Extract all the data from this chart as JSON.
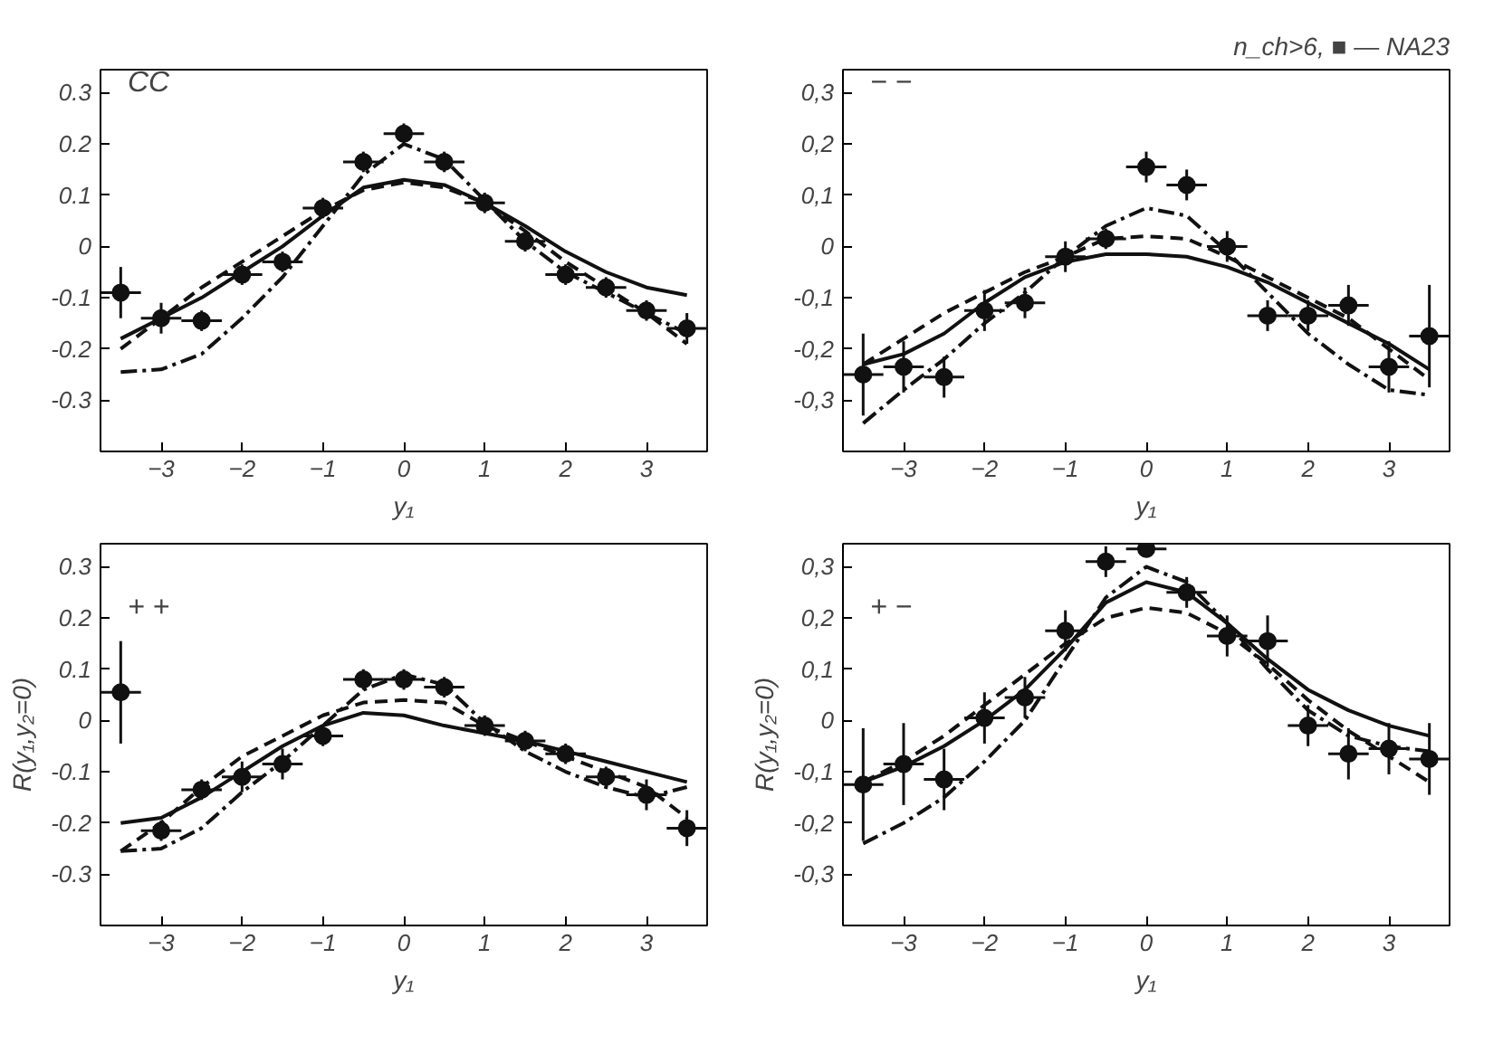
{
  "chart_data": [
    {
      "type": "line",
      "xlabel": "y₁",
      "annotations": [
        "CC"
      ],
      "xlim": [
        -3.75,
        3.75
      ],
      "ylim": [
        -0.4,
        0.345
      ],
      "xticks": [
        -3,
        -2,
        -1,
        0,
        1,
        2,
        3
      ],
      "yticks": [
        {
          "value": -0.3,
          "label": "-0.3"
        },
        {
          "value": -0.2,
          "label": "-0.2"
        },
        {
          "value": -0.1,
          "label": "-0.1"
        },
        {
          "value": 0,
          "label": "0"
        },
        {
          "value": 0.1,
          "label": "0.1"
        },
        {
          "value": 0.2,
          "label": "0.2"
        },
        {
          "value": 0.3,
          "label": "0.3"
        }
      ],
      "grid": false,
      "x": [
        -3.5,
        -3,
        -2.5,
        -2,
        -1.5,
        -1,
        -0.5,
        0,
        0.5,
        1,
        1.5,
        2,
        2.5,
        3,
        3.5
      ],
      "series": [
        {
          "line_style": "solid",
          "color": "#111111",
          "values": [
            -0.18,
            -0.14,
            -0.1,
            -0.05,
            0.0,
            0.06,
            0.115,
            0.13,
            0.12,
            0.085,
            0.04,
            -0.01,
            -0.05,
            -0.08,
            -0.095
          ]
        },
        {
          "line_style": "dashed",
          "color": "#111111",
          "values": [
            -0.2,
            -0.14,
            -0.08,
            -0.03,
            0.02,
            0.07,
            0.11,
            0.125,
            0.115,
            0.085,
            0.03,
            -0.03,
            -0.08,
            -0.13,
            -0.19
          ]
        },
        {
          "line_style": "dashdot",
          "color": "#111111",
          "values": [
            -0.245,
            -0.24,
            -0.21,
            -0.14,
            -0.06,
            0.04,
            0.14,
            0.2,
            0.17,
            0.09,
            0.01,
            -0.05,
            -0.09,
            -0.13,
            -0.17
          ]
        },
        {
          "type": "scatter",
          "marker": "circle",
          "color": "#111111",
          "values": [
            -0.09,
            -0.14,
            -0.145,
            -0.055,
            -0.03,
            0.075,
            0.165,
            0.22,
            0.165,
            0.085,
            0.01,
            -0.055,
            -0.08,
            -0.125,
            -0.16
          ],
          "errors": [
            0.05,
            0.03,
            0.02,
            0.02,
            0.02,
            0.02,
            0.02,
            0.02,
            0.02,
            0.02,
            0.02,
            0.02,
            0.02,
            0.02,
            0.03
          ],
          "xerrors": [
            0.25,
            0.25,
            0.25,
            0.25,
            0.25,
            0.25,
            0.25,
            0.25,
            0.25,
            0.25,
            0.25,
            0.25,
            0.25,
            0.25,
            0.25
          ]
        }
      ]
    },
    {
      "type": "line",
      "title": "n_ch>6, ■ — NA23",
      "xlabel": "y₁",
      "annotations": [
        "− −"
      ],
      "xlim": [
        -3.75,
        3.75
      ],
      "ylim": [
        -0.4,
        0.345
      ],
      "xticks": [
        -3,
        -2,
        -1,
        0,
        1,
        2,
        3
      ],
      "yticks": [
        {
          "value": -0.3,
          "label": "-0,3"
        },
        {
          "value": -0.2,
          "label": "-0,2"
        },
        {
          "value": -0.1,
          "label": "-0,1"
        },
        {
          "value": 0,
          "label": "0"
        },
        {
          "value": 0.1,
          "label": "0,1"
        },
        {
          "value": 0.2,
          "label": "0,2"
        },
        {
          "value": 0.3,
          "label": "0,3"
        }
      ],
      "grid": false,
      "x": [
        -3.5,
        -3,
        -2.5,
        -2,
        -1.5,
        -1,
        -0.5,
        0,
        0.5,
        1,
        1.5,
        2,
        2.5,
        3,
        3.5
      ],
      "series": [
        {
          "line_style": "solid",
          "color": "#111111",
          "values": [
            -0.23,
            -0.21,
            -0.17,
            -0.11,
            -0.06,
            -0.03,
            -0.015,
            -0.015,
            -0.02,
            -0.04,
            -0.07,
            -0.11,
            -0.15,
            -0.19,
            -0.24
          ]
        },
        {
          "line_style": "dashed",
          "color": "#111111",
          "values": [
            -0.23,
            -0.18,
            -0.13,
            -0.09,
            -0.05,
            -0.02,
            0.015,
            0.02,
            0.015,
            -0.02,
            -0.06,
            -0.1,
            -0.14,
            -0.2,
            -0.26
          ]
        },
        {
          "line_style": "dashdot",
          "color": "#111111",
          "values": [
            -0.345,
            -0.28,
            -0.22,
            -0.15,
            -0.09,
            -0.02,
            0.04,
            0.075,
            0.06,
            -0.01,
            -0.09,
            -0.17,
            -0.23,
            -0.28,
            -0.29
          ]
        },
        {
          "type": "scatter",
          "marker": "circle",
          "color": "#111111",
          "values": [
            -0.25,
            -0.235,
            -0.255,
            -0.125,
            -0.11,
            -0.02,
            0.015,
            0.155,
            0.12,
            0.0,
            -0.135,
            -0.135,
            -0.115,
            -0.235,
            -0.175
          ],
          "errors": [
            0.08,
            0.05,
            0.04,
            0.04,
            0.03,
            0.03,
            0.02,
            0.03,
            0.03,
            0.03,
            0.03,
            0.03,
            0.04,
            0.05,
            0.1
          ],
          "xerrors": [
            0.25,
            0.25,
            0.25,
            0.25,
            0.25,
            0.25,
            0.25,
            0.25,
            0.25,
            0.25,
            0.25,
            0.25,
            0.25,
            0.25,
            0.25
          ]
        }
      ]
    },
    {
      "type": "line",
      "xlabel": "y₁",
      "ylabel": "R(y₁,y₂=0)",
      "annotations": [
        "+ +"
      ],
      "xlim": [
        -3.75,
        3.75
      ],
      "ylim": [
        -0.4,
        0.345
      ],
      "xticks": [
        -3,
        -2,
        -1,
        0,
        1,
        2,
        3
      ],
      "yticks": [
        {
          "value": -0.3,
          "label": "-0.3"
        },
        {
          "value": -0.2,
          "label": "-0.2"
        },
        {
          "value": -0.1,
          "label": "-0.1"
        },
        {
          "value": 0,
          "label": "0"
        },
        {
          "value": 0.1,
          "label": "0.1"
        },
        {
          "value": 0.2,
          "label": "0.2"
        },
        {
          "value": 0.3,
          "label": "0.3"
        }
      ],
      "grid": false,
      "x": [
        -3.5,
        -3,
        -2.5,
        -2,
        -1.5,
        -1,
        -0.5,
        0,
        0.5,
        1,
        1.5,
        2,
        2.5,
        3,
        3.5
      ],
      "series": [
        {
          "line_style": "solid",
          "color": "#111111",
          "values": [
            -0.2,
            -0.19,
            -0.15,
            -0.1,
            -0.05,
            -0.01,
            0.015,
            0.01,
            -0.01,
            -0.025,
            -0.04,
            -0.06,
            -0.08,
            -0.1,
            -0.12
          ]
        },
        {
          "line_style": "dashed",
          "color": "#111111",
          "values": [
            -0.255,
            -0.2,
            -0.13,
            -0.07,
            -0.03,
            0.01,
            0.035,
            0.04,
            0.035,
            -0.01,
            -0.04,
            -0.07,
            -0.1,
            -0.13,
            -0.19
          ]
        },
        {
          "line_style": "dashdot",
          "color": "#111111",
          "values": [
            -0.255,
            -0.25,
            -0.21,
            -0.14,
            -0.08,
            -0.01,
            0.06,
            0.09,
            0.07,
            -0.005,
            -0.06,
            -0.1,
            -0.13,
            -0.15,
            -0.13
          ]
        },
        {
          "type": "scatter",
          "marker": "circle",
          "color": "#111111",
          "values": [
            0.055,
            -0.215,
            -0.135,
            -0.11,
            -0.085,
            -0.03,
            0.08,
            0.08,
            0.065,
            -0.01,
            -0.04,
            -0.065,
            -0.11,
            -0.145,
            -0.21
          ],
          "errors": [
            0.1,
            0.02,
            0.02,
            0.03,
            0.03,
            0.02,
            0.02,
            0.02,
            0.02,
            0.02,
            0.02,
            0.02,
            0.02,
            0.03,
            0.035
          ],
          "xerrors": [
            0.25,
            0.25,
            0.25,
            0.25,
            0.25,
            0.25,
            0.25,
            0.25,
            0.25,
            0.25,
            0.25,
            0.25,
            0.25,
            0.25,
            0.25
          ]
        }
      ]
    },
    {
      "type": "line",
      "xlabel": "y₁",
      "ylabel": "R(y₁,y₂=0)",
      "annotations": [
        "+ −"
      ],
      "xlim": [
        -3.75,
        3.75
      ],
      "ylim": [
        -0.4,
        0.345
      ],
      "xticks": [
        -3,
        -2,
        -1,
        0,
        1,
        2,
        3
      ],
      "yticks": [
        {
          "value": -0.3,
          "label": "-0,3"
        },
        {
          "value": -0.2,
          "label": "-0,2"
        },
        {
          "value": -0.1,
          "label": "-0,1"
        },
        {
          "value": 0,
          "label": "0"
        },
        {
          "value": 0.1,
          "label": "0,1"
        },
        {
          "value": 0.2,
          "label": "0,2"
        },
        {
          "value": 0.3,
          "label": "0,3"
        }
      ],
      "grid": false,
      "x": [
        -3.5,
        -3,
        -2.5,
        -2,
        -1.5,
        -1,
        -0.5,
        0,
        0.5,
        1,
        1.5,
        2,
        2.5,
        3,
        3.5
      ],
      "series": [
        {
          "line_style": "solid",
          "color": "#111111",
          "values": [
            -0.12,
            -0.09,
            -0.05,
            0.0,
            0.06,
            0.14,
            0.23,
            0.27,
            0.25,
            0.19,
            0.12,
            0.06,
            0.02,
            -0.01,
            -0.03
          ]
        },
        {
          "line_style": "dashed",
          "color": "#111111",
          "values": [
            -0.12,
            -0.08,
            -0.03,
            0.03,
            0.09,
            0.15,
            0.2,
            0.22,
            0.21,
            0.17,
            0.11,
            0.04,
            -0.02,
            -0.07,
            -0.12
          ]
        },
        {
          "line_style": "dashdot",
          "color": "#111111",
          "values": [
            -0.24,
            -0.2,
            -0.15,
            -0.08,
            0.0,
            0.12,
            0.24,
            0.3,
            0.27,
            0.19,
            0.1,
            0.02,
            -0.03,
            -0.05,
            -0.06
          ]
        },
        {
          "type": "scatter",
          "marker": "circle",
          "color": "#111111",
          "values": [
            -0.125,
            -0.085,
            -0.115,
            0.005,
            0.045,
            0.175,
            0.31,
            0.335,
            0.25,
            0.165,
            0.155,
            -0.01,
            -0.065,
            -0.055,
            -0.075
          ],
          "errors": [
            0.11,
            0.08,
            0.06,
            0.05,
            0.04,
            0.04,
            0.03,
            0.01,
            0.03,
            0.04,
            0.05,
            0.04,
            0.05,
            0.05,
            0.07
          ],
          "xerrors": [
            0.25,
            0.25,
            0.25,
            0.25,
            0.25,
            0.25,
            0.25,
            0.25,
            0.25,
            0.25,
            0.25,
            0.25,
            0.25,
            0.25,
            0.25
          ]
        }
      ]
    }
  ]
}
